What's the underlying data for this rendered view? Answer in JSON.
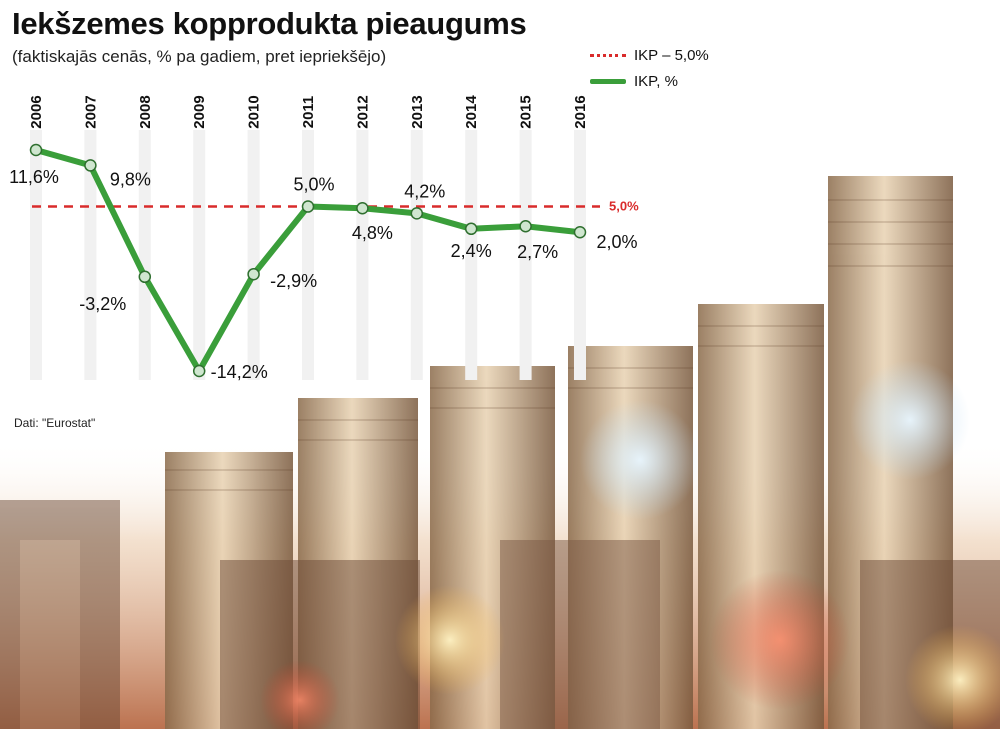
{
  "title": "Iekšzemes kopprodukta pieaugums",
  "subtitle": "(faktiskajās cenās, % pa gadiem, pret iepriekšējo)",
  "legend": {
    "reference_label": "IKP – 5,0%",
    "series_label": "IKP, %"
  },
  "source": "Dati: \"Eurostat\"",
  "colors": {
    "series": "#3a9e3a",
    "reference": "#d92b2b",
    "column_band": "#f1f1f1"
  },
  "chart_data": {
    "type": "line",
    "title": "Iekšzemes kopprodukta pieaugums",
    "subtitle": "(faktiskajās cenās, % pa gadiem, pret iepriekšējo)",
    "x": [
      "2006",
      "2007",
      "2008",
      "2009",
      "2010",
      "2011",
      "2012",
      "2013",
      "2014",
      "2015",
      "2016"
    ],
    "series": [
      {
        "name": "IKP, %",
        "values": [
          11.6,
          9.8,
          -3.2,
          -14.2,
          -2.9,
          5.0,
          4.8,
          4.2,
          2.4,
          2.7,
          2.0
        ],
        "labels": [
          "11,6%",
          "9,8%",
          "-3,2%",
          "-14,2%",
          "-2,9%",
          "5,0%",
          "4,8%",
          "4,2%",
          "2,4%",
          "2,7%",
          "2,0%"
        ]
      }
    ],
    "reference_line": {
      "name": "IKP – 5,0%",
      "value": 5.0,
      "label": "5,0%"
    },
    "ylim": [
      -14.2,
      11.6
    ],
    "grid": false,
    "legend_position": "top-right"
  }
}
